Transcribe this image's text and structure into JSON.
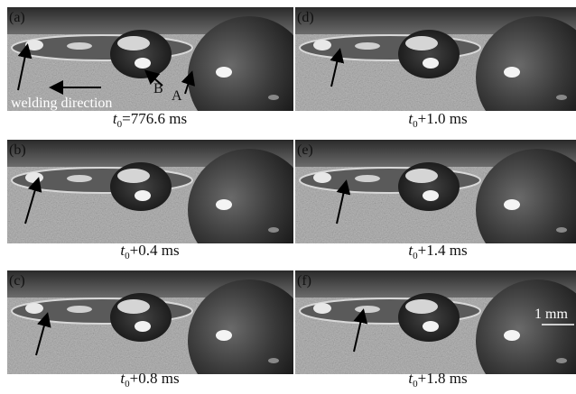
{
  "panels": [
    {
      "label": "(a)",
      "caption": {
        "symbol": "t",
        "subscript": "0",
        "text": "=776.6 ms"
      }
    },
    {
      "label": "(d)",
      "caption": {
        "symbol": "t",
        "subscript": "0",
        "text": "+1.0 ms"
      }
    },
    {
      "label": "(b)",
      "caption": {
        "symbol": "t",
        "subscript": "0",
        "text": "+0.4 ms"
      }
    },
    {
      "label": "(e)",
      "caption": {
        "symbol": "t",
        "subscript": "0",
        "text": "+1.4 ms"
      }
    },
    {
      "label": "(c)",
      "caption": {
        "symbol": "t",
        "subscript": "0",
        "text": "+0.8 ms"
      }
    },
    {
      "label": "(f)",
      "caption": {
        "symbol": "t",
        "subscript": "0",
        "text": "+1.8 ms"
      }
    }
  ],
  "annotations": {
    "welding_direction": "welding direction",
    "point_b": "B",
    "point_a": "A",
    "scale_bar": "1 mm"
  }
}
